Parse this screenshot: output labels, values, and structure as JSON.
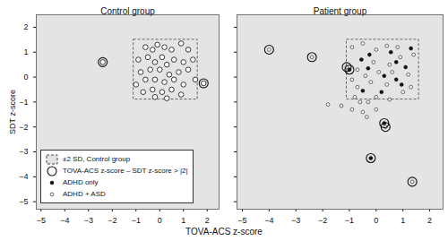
{
  "chart_data": {
    "type": "scatter",
    "x_label": "TOVA-ACS z-score",
    "y_label": "SDT z-score",
    "xlim": [
      -5.2,
      2.5
    ],
    "ylim": [
      -5.3,
      2.5
    ],
    "xticks": [
      -5,
      -4,
      -3,
      -2,
      -1,
      0,
      1,
      2
    ],
    "yticks": [
      -5,
      -4,
      -3,
      -2,
      -1,
      0,
      1,
      2
    ],
    "legend": "lower left",
    "box": {
      "name": "±2 SD, Control group",
      "line_style": "dashed",
      "x": [
        -1.1,
        1.6
      ],
      "y": [
        -0.9,
        1.5
      ]
    },
    "flagged": {
      "name": "TOVA-ACS z-score – SDT z-score > |2|",
      "marker": "ring"
    },
    "panels": [
      {
        "title": "Control group",
        "series": [
          {
            "marker": "open_circle",
            "points": [
              [
                -0.6,
                1.2
              ],
              [
                -0.3,
                1.1
              ],
              [
                -0.1,
                1.3
              ],
              [
                0.2,
                1.2
              ],
              [
                0.5,
                1.1
              ],
              [
                0.9,
                1.35
              ],
              [
                1.2,
                1.1
              ],
              [
                1.4,
                0.7
              ],
              [
                -0.9,
                0.7
              ],
              [
                -0.5,
                0.8
              ],
              [
                -0.2,
                0.6
              ],
              [
                0.1,
                0.8
              ],
              [
                0.3,
                0.5
              ],
              [
                0.6,
                0.7
              ],
              [
                1.0,
                0.6
              ],
              [
                1.2,
                0.3
              ],
              [
                -0.8,
                0.2
              ],
              [
                -0.4,
                0.3
              ],
              [
                0.0,
                0.3
              ],
              [
                0.4,
                0.1
              ],
              [
                0.8,
                0.2
              ],
              [
                -1.0,
                -0.3
              ],
              [
                -0.6,
                -0.1
              ],
              [
                -0.2,
                -0.1
              ],
              [
                0.2,
                -0.2
              ],
              [
                0.6,
                -0.1
              ],
              [
                1.0,
                -0.3
              ],
              [
                1.5,
                -0.1
              ],
              [
                -0.7,
                -0.6
              ],
              [
                -0.3,
                -0.5
              ],
              [
                0.1,
                -0.6
              ],
              [
                0.5,
                -0.5
              ],
              [
                0.9,
                -0.7
              ],
              [
                -0.2,
                -0.8
              ],
              [
                0.3,
                -0.85
              ],
              [
                -2.4,
                0.6
              ],
              [
                1.85,
                -0.25
              ]
            ]
          }
        ],
        "flagged_points": [
          [
            -2.4,
            0.6
          ],
          [
            1.85,
            -0.25
          ]
        ]
      },
      {
        "title": "Patient group",
        "series": [
          {
            "name": "ADHD only",
            "marker": "filled_circle",
            "points": [
              [
                1.3,
                1.15
              ],
              [
                -0.25,
                0.9
              ],
              [
                0.55,
                1.0
              ],
              [
                -0.55,
                0.7
              ],
              [
                0.75,
                0.6
              ],
              [
                1.1,
                0.4
              ],
              [
                -0.3,
                0.35
              ],
              [
                0.3,
                0.05
              ],
              [
                0.75,
                -0.1
              ],
              [
                -0.5,
                -0.55
              ],
              [
                0.2,
                -0.6
              ],
              [
                0.95,
                -0.3
              ],
              [
                -1.0,
                0.3
              ],
              [
                -0.2,
                -3.25
              ],
              [
                0.3,
                -1.85
              ]
            ]
          },
          {
            "name": "ADHD + ASD",
            "marker": "small_open_circle",
            "points": [
              [
                -4.0,
                1.1
              ],
              [
                -2.4,
                0.8
              ],
              [
                -1.1,
                0.4
              ],
              [
                -0.9,
                1.2
              ],
              [
                -0.5,
                1.35
              ],
              [
                0.0,
                1.1
              ],
              [
                0.4,
                1.25
              ],
              [
                0.8,
                1.2
              ],
              [
                1.4,
                0.9
              ],
              [
                -0.7,
                0.3
              ],
              [
                -0.1,
                0.6
              ],
              [
                0.5,
                0.5
              ],
              [
                0.9,
                0.8
              ],
              [
                1.2,
                0.1
              ],
              [
                -0.9,
                -0.1
              ],
              [
                -0.4,
                0.05
              ],
              [
                0.1,
                0.2
              ],
              [
                0.6,
                0.2
              ],
              [
                1.0,
                -0.6
              ],
              [
                -0.7,
                -0.4
              ],
              [
                -0.2,
                -0.2
              ],
              [
                0.4,
                -0.3
              ],
              [
                -0.8,
                -0.8
              ],
              [
                -0.3,
                -1.0
              ],
              [
                0.0,
                -0.8
              ],
              [
                0.5,
                -0.9
              ],
              [
                1.3,
                -0.4
              ],
              [
                -1.8,
                -1.1
              ],
              [
                -1.3,
                -1.15
              ],
              [
                -0.6,
                -1.0
              ],
              [
                -0.5,
                -1.4
              ],
              [
                -0.35,
                -1.6
              ],
              [
                0.0,
                -1.3
              ],
              [
                0.35,
                -2.0
              ],
              [
                1.35,
                -4.2
              ],
              [
                -0.9,
                -1.3
              ]
            ]
          }
        ],
        "flagged_points": [
          [
            -4.0,
            1.1
          ],
          [
            -2.4,
            0.8
          ],
          [
            -1.1,
            0.4
          ],
          [
            -1.0,
            0.3
          ],
          [
            0.3,
            -1.85
          ],
          [
            0.35,
            -2.0
          ],
          [
            -0.2,
            -3.25
          ],
          [
            1.35,
            -4.2
          ]
        ]
      }
    ]
  }
}
